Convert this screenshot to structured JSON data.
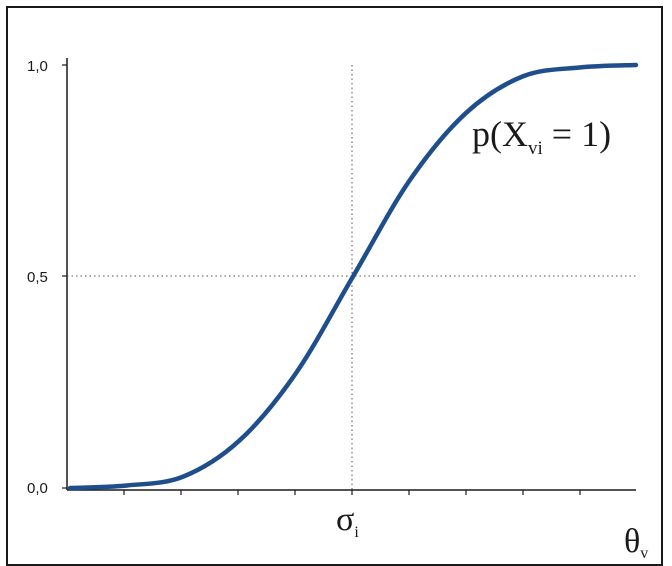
{
  "chart_data": {
    "type": "line",
    "title": "",
    "xlabel": "θ",
    "xlabel_sub": "v",
    "ylabel": "",
    "ylim": [
      0,
      1
    ],
    "y_ticks": [
      "0,0",
      "0,5",
      "1,0"
    ],
    "x_marker": {
      "symbol": "σ",
      "sub": "i"
    },
    "annotation": {
      "prefix": "p(X",
      "sub": "vi",
      "suffix": " = 1)"
    },
    "grid": false,
    "reference_lines": {
      "horizontal_at": 0.5,
      "vertical_at": 0
    },
    "series": [
      {
        "color": "#1f4e8c",
        "x": [
          -5.0,
          -4.0,
          -3.0,
          -2.0,
          -1.0,
          0.0,
          1.0,
          2.0,
          3.0,
          4.0,
          5.0
        ],
        "y": [
          0.0,
          0.006,
          0.027,
          0.113,
          0.273,
          0.5,
          0.727,
          0.887,
          0.973,
          0.994,
          1.0
        ]
      }
    ]
  }
}
